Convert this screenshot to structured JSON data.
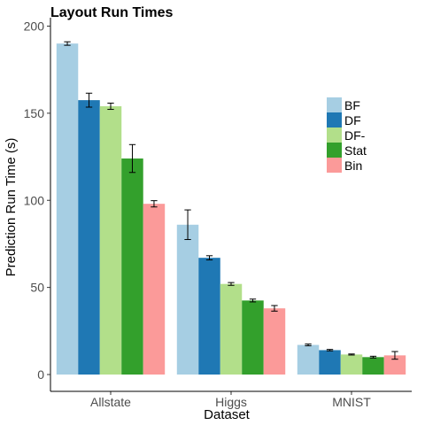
{
  "chart_data": {
    "type": "bar",
    "title": "Layout Run Times",
    "xlabel": "Dataset",
    "ylabel": "Prediction Run Time (s)",
    "ylim": [
      0,
      200
    ],
    "yticks": [
      0,
      50,
      100,
      150,
      200
    ],
    "categories": [
      "Allstate",
      "Higgs",
      "MNIST"
    ],
    "grid": false,
    "legend_position": "right",
    "series": [
      {
        "name": "BF",
        "color": "#a6cee3",
        "values": [
          190,
          86,
          17
        ],
        "errors": [
          1,
          8.5,
          0.5
        ]
      },
      {
        "name": "DF",
        "color": "#1f78b4",
        "values": [
          157.5,
          67,
          14
        ],
        "errors": [
          4,
          1.2,
          0.4
        ]
      },
      {
        "name": "DF-",
        "color": "#b2df8a",
        "values": [
          154,
          52,
          11.5
        ],
        "errors": [
          1.8,
          0.8,
          0.3
        ]
      },
      {
        "name": "Stat",
        "color": "#33a02c",
        "values": [
          124,
          42.5,
          10
        ],
        "errors": [
          8,
          0.8,
          0.5
        ]
      },
      {
        "name": "Bin",
        "color": "#fb9a99",
        "values": [
          98,
          38,
          11
        ],
        "errors": [
          1.8,
          1.6,
          2.2
        ]
      }
    ]
  }
}
